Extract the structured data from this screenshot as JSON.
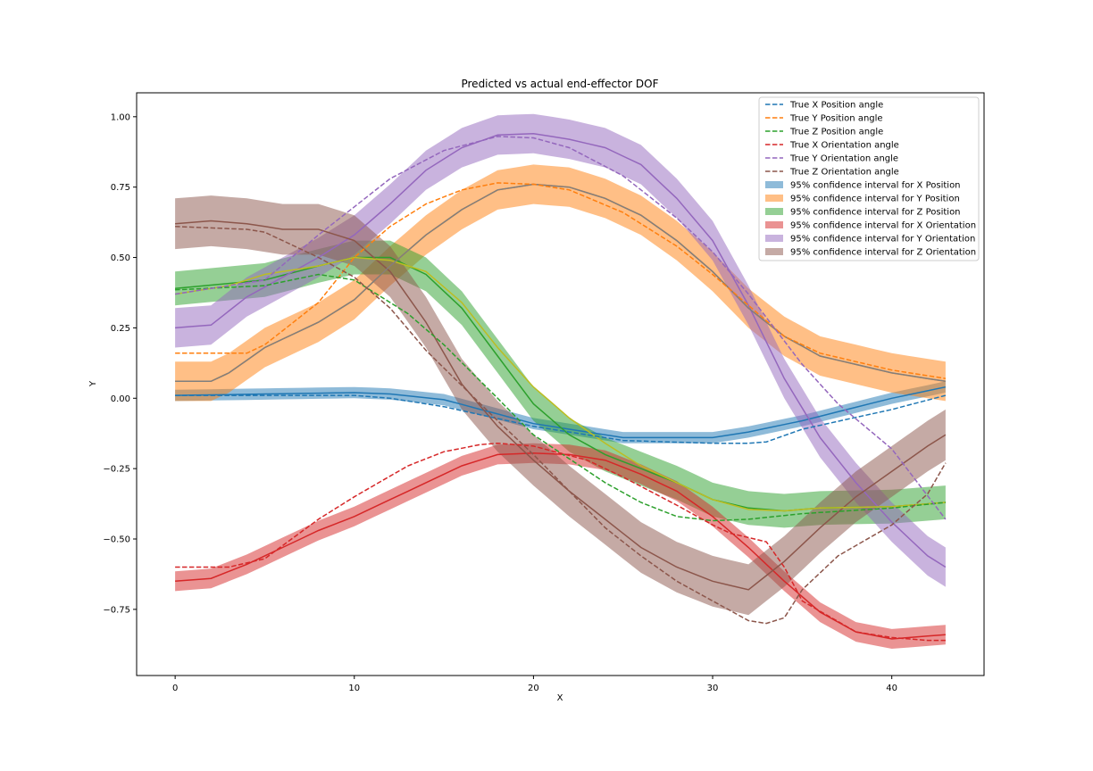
{
  "chart_data": {
    "type": "line",
    "title": "Predicted vs actual end-effector DOF",
    "xlabel": "X",
    "ylabel": "Y",
    "xlim": [
      -2.15,
      45.15
    ],
    "ylim": [
      -0.985,
      1.085
    ],
    "xticks": [
      0,
      10,
      20,
      30,
      40
    ],
    "yticks": [
      -0.75,
      -0.5,
      -0.25,
      0.0,
      0.25,
      0.5,
      0.75,
      1.0
    ],
    "ytick_labels": [
      "−0.75",
      "−0.50",
      "−0.25",
      "0.00",
      "0.25",
      "0.50",
      "0.75",
      "1.00"
    ],
    "xtick_labels": [
      "0",
      "10",
      "20",
      "30",
      "40"
    ],
    "grid": false,
    "legend_position": "top-right",
    "true_series": [
      {
        "name": "True X Position angle",
        "color": "#1f77b4",
        "x": [
          0,
          5,
          10,
          12,
          15,
          20,
          25,
          30,
          32,
          33,
          35,
          40,
          43
        ],
        "y": [
          0.01,
          0.01,
          0.01,
          0.0,
          -0.03,
          -0.1,
          -0.15,
          -0.16,
          -0.16,
          -0.155,
          -0.11,
          -0.04,
          0.01
        ]
      },
      {
        "name": "True Y Position angle",
        "color": "#ff7f0e",
        "x": [
          0,
          4,
          5,
          8,
          10,
          12,
          14,
          16,
          18,
          20,
          22,
          25,
          28,
          30,
          32,
          34,
          36,
          40,
          43
        ],
        "y": [
          0.16,
          0.16,
          0.19,
          0.34,
          0.5,
          0.61,
          0.69,
          0.74,
          0.765,
          0.76,
          0.74,
          0.66,
          0.54,
          0.44,
          0.33,
          0.22,
          0.16,
          0.1,
          0.07
        ]
      },
      {
        "name": "True Z Position angle",
        "color": "#2ca02c",
        "x": [
          0,
          5,
          8,
          10,
          13,
          15,
          18,
          20,
          24,
          26,
          28,
          30,
          32,
          35,
          40,
          43
        ],
        "y": [
          0.385,
          0.4,
          0.44,
          0.42,
          0.3,
          0.19,
          0.0,
          -0.13,
          -0.3,
          -0.37,
          -0.42,
          -0.435,
          -0.43,
          -0.41,
          -0.39,
          -0.37
        ]
      },
      {
        "name": "True X Orientation angle",
        "color": "#d62728",
        "x": [
          0,
          3,
          5,
          8,
          10,
          13,
          15,
          17,
          18,
          20,
          23,
          25,
          28,
          30,
          31,
          33,
          34,
          35,
          38,
          40,
          42,
          43
        ],
        "y": [
          -0.6,
          -0.6,
          -0.57,
          -0.43,
          -0.35,
          -0.24,
          -0.19,
          -0.165,
          -0.16,
          -0.17,
          -0.22,
          -0.28,
          -0.38,
          -0.45,
          -0.48,
          -0.51,
          -0.6,
          -0.72,
          -0.83,
          -0.85,
          -0.86,
          -0.86
        ]
      },
      {
        "name": "True Y Orientation angle",
        "color": "#9467bd",
        "x": [
          0,
          5,
          8,
          10,
          12,
          15,
          18,
          20,
          22,
          25,
          28,
          30,
          32,
          35,
          37,
          40,
          43
        ],
        "y": [
          0.37,
          0.42,
          0.58,
          0.68,
          0.78,
          0.88,
          0.93,
          0.925,
          0.89,
          0.79,
          0.64,
          0.52,
          0.37,
          0.12,
          -0.02,
          -0.18,
          -0.43
        ]
      },
      {
        "name": "True Z Orientation angle",
        "color": "#8c564b",
        "x": [
          0,
          4,
          5,
          8,
          10,
          12,
          14,
          18,
          20,
          22,
          24,
          26,
          28,
          30,
          32,
          33,
          34,
          35,
          37,
          40,
          42,
          43
        ],
        "y": [
          0.61,
          0.6,
          0.59,
          0.5,
          0.43,
          0.32,
          0.17,
          -0.08,
          -0.2,
          -0.33,
          -0.46,
          -0.56,
          -0.65,
          -0.72,
          -0.79,
          -0.8,
          -0.78,
          -0.68,
          -0.56,
          -0.45,
          -0.34,
          -0.23
        ]
      }
    ],
    "predicted_series": [
      {
        "color": "#1f77b4",
        "band_color": "#1f77b4",
        "band_label": "95% confidence interval for X Position",
        "band_half_width": 0.02,
        "x": [
          0,
          5,
          10,
          12,
          15,
          20,
          25,
          30,
          32,
          35,
          40,
          43
        ],
        "y": [
          0.01,
          0.015,
          0.02,
          0.015,
          -0.005,
          -0.09,
          -0.14,
          -0.14,
          -0.12,
          -0.08,
          0.0,
          0.04
        ]
      },
      {
        "color": "#ff7f0e",
        "band_color": "#ff7f0e",
        "band_label": "95% confidence interval for Y Position",
        "band_half_width": 0.07,
        "x": [
          0,
          2,
          3,
          5,
          8,
          10,
          12,
          14,
          16,
          18,
          20,
          22,
          24,
          26,
          28,
          30,
          32,
          34,
          36,
          40,
          43
        ],
        "y": [
          0.06,
          0.06,
          0.09,
          0.18,
          0.27,
          0.35,
          0.47,
          0.58,
          0.67,
          0.74,
          0.76,
          0.75,
          0.71,
          0.65,
          0.56,
          0.45,
          0.32,
          0.22,
          0.15,
          0.09,
          0.06
        ]
      },
      {
        "color": "#2ca02c",
        "band_color": "#2ca02c",
        "band_label": "95% confidence interval for Z Position",
        "band_half_width": 0.06,
        "x": [
          0,
          5,
          8,
          10,
          12,
          14,
          16,
          18,
          20,
          22,
          24,
          26,
          28,
          30,
          32,
          34,
          36,
          40,
          43
        ],
        "y": [
          0.39,
          0.42,
          0.47,
          0.5,
          0.5,
          0.44,
          0.32,
          0.15,
          -0.02,
          -0.13,
          -0.2,
          -0.25,
          -0.3,
          -0.36,
          -0.39,
          -0.4,
          -0.39,
          -0.385,
          -0.37
        ]
      },
      {
        "color": "#d62728",
        "band_color": "#d62728",
        "band_label": "95% confidence interval for X Orientation",
        "band_half_width": 0.035,
        "x": [
          0,
          2,
          4,
          6,
          8,
          10,
          12,
          14,
          16,
          18,
          20,
          22,
          24,
          26,
          28,
          30,
          32,
          34,
          36,
          38,
          40,
          43
        ],
        "y": [
          -0.65,
          -0.64,
          -0.59,
          -0.53,
          -0.47,
          -0.42,
          -0.36,
          -0.3,
          -0.24,
          -0.2,
          -0.195,
          -0.2,
          -0.22,
          -0.27,
          -0.33,
          -0.42,
          -0.53,
          -0.65,
          -0.76,
          -0.83,
          -0.855,
          -0.84
        ]
      },
      {
        "color": "#9467bd",
        "band_color": "#9467bd",
        "band_label": "95% confidence interval for Y Orientation",
        "band_half_width": 0.07,
        "x": [
          0,
          2,
          4,
          6,
          8,
          10,
          12,
          14,
          16,
          18,
          20,
          22,
          24,
          26,
          28,
          30,
          32,
          34,
          36,
          38,
          40,
          42,
          43
        ],
        "y": [
          0.25,
          0.26,
          0.36,
          0.43,
          0.5,
          0.58,
          0.69,
          0.81,
          0.89,
          0.935,
          0.94,
          0.92,
          0.89,
          0.83,
          0.71,
          0.56,
          0.33,
          0.07,
          -0.14,
          -0.3,
          -0.44,
          -0.56,
          -0.6
        ]
      },
      {
        "color": "#8c564b",
        "band_color": "#8c564b",
        "band_label": "95% confidence interval for Z Orientation",
        "band_half_width": 0.09,
        "x": [
          0,
          2,
          4,
          6,
          8,
          10,
          12,
          14,
          16,
          18,
          20,
          22,
          24,
          26,
          28,
          30,
          32,
          34,
          36,
          38,
          40,
          42,
          43
        ],
        "y": [
          0.62,
          0.63,
          0.62,
          0.6,
          0.6,
          0.56,
          0.45,
          0.27,
          0.05,
          -0.1,
          -0.22,
          -0.33,
          -0.43,
          -0.53,
          -0.6,
          -0.65,
          -0.68,
          -0.58,
          -0.46,
          -0.35,
          -0.26,
          -0.17,
          -0.13
        ]
      },
      {
        "color": "#bcbd22",
        "x": [
          0,
          3,
          5,
          8,
          10,
          12,
          14,
          16,
          18,
          20,
          22,
          24,
          26,
          28,
          30,
          32,
          34,
          36,
          40,
          43
        ],
        "y": [
          0.37,
          0.4,
          0.44,
          0.47,
          0.5,
          0.49,
          0.45,
          0.34,
          0.18,
          0.04,
          -0.07,
          -0.16,
          -0.24,
          -0.3,
          -0.36,
          -0.395,
          -0.4,
          -0.39,
          -0.385,
          -0.37
        ]
      },
      {
        "color": "#7f7f7f",
        "x": [
          0,
          2,
          3,
          5,
          8,
          10,
          12,
          14,
          16,
          18,
          20,
          22,
          24,
          26,
          28,
          30,
          32,
          34,
          36,
          40,
          43
        ],
        "y": [
          0.06,
          0.06,
          0.09,
          0.18,
          0.27,
          0.35,
          0.47,
          0.58,
          0.67,
          0.74,
          0.76,
          0.75,
          0.71,
          0.65,
          0.56,
          0.45,
          0.32,
          0.22,
          0.15,
          0.09,
          0.06
        ]
      }
    ]
  }
}
